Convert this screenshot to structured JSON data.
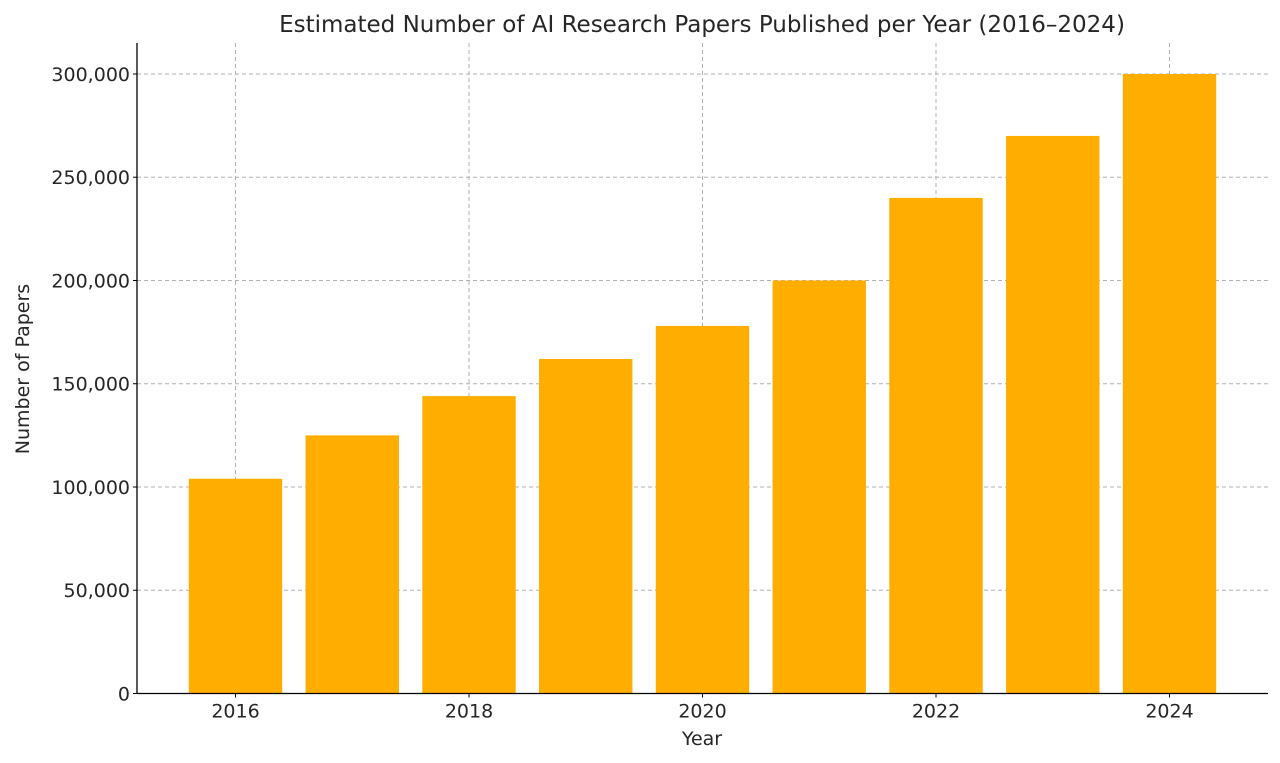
{
  "chart_data": {
    "type": "bar",
    "title": "Estimated Number of AI Research Papers Published per Year (2016–2024)",
    "xlabel": "Year",
    "ylabel": "Number of Papers",
    "categories": [
      2016,
      2017,
      2018,
      2019,
      2020,
      2021,
      2022,
      2023,
      2024
    ],
    "values": [
      104000,
      125000,
      144000,
      162000,
      178000,
      200000,
      240000,
      270000,
      300000
    ],
    "x_tick_labels": [
      "2016",
      "2018",
      "2020",
      "2022",
      "2024"
    ],
    "y_tick_values": [
      0,
      50000,
      100000,
      150000,
      200000,
      250000,
      300000
    ],
    "y_tick_labels": [
      "0",
      "50,000",
      "100,000",
      "150,000",
      "200,000",
      "250,000",
      "300,000"
    ],
    "ylim": [
      0,
      315000
    ],
    "grid": true,
    "legend": null,
    "bar_color": "#FFAE00"
  }
}
